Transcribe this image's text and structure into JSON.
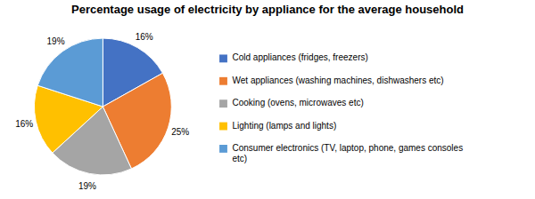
{
  "chart_data": {
    "type": "pie",
    "title": "Percentage usage of electricity by appliance for the average household",
    "categories": [
      "Cold appliances (fridges, freezers)",
      "Wet appliances (washing machines, dishwashers etc)",
      "Cooking (ovens, microwaves etc)",
      "Lighting (lamps and lights)",
      "Consumer electronics (TV, laptop, phone, games consoles\netc)"
    ],
    "values": [
      16,
      25,
      19,
      16,
      19
    ],
    "value_labels": [
      "16%",
      "25%",
      "19%",
      "16%",
      "19%"
    ],
    "colors": [
      "#4472C4",
      "#ED7D31",
      "#A5A5A5",
      "#FFC000",
      "#5B9BD5"
    ],
    "data_labels": true,
    "legend": "right"
  }
}
